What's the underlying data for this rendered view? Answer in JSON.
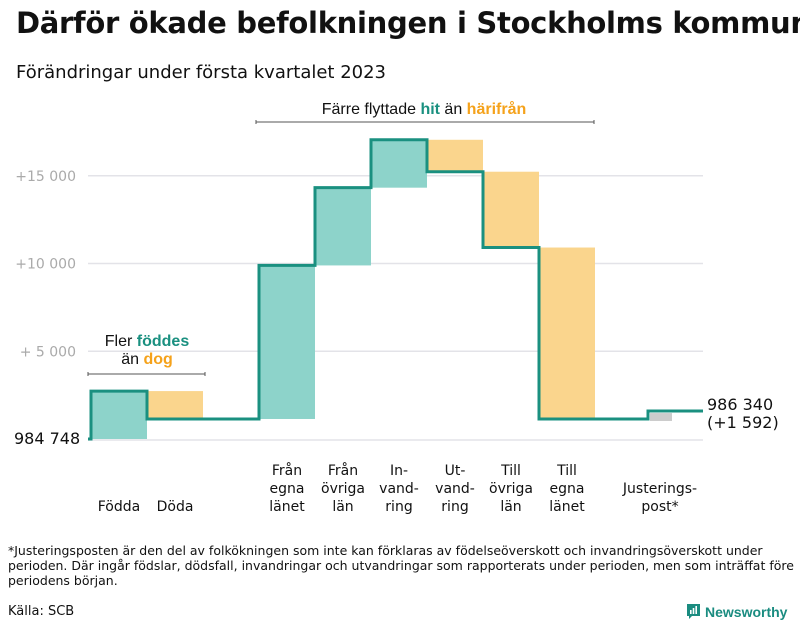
{
  "title": "Därför ökade befolkningen i Stockholms kommun",
  "subtitle": "Förändringar under första kvartalet 2023",
  "footnote": "*Justeringsposten är den del av folkökningen som inte kan förklaras av födelseöverskott och invandringsöverskott under perioden. Där ingår födslar, dödsfall, invandringar och utvandringar som rapporterats under perioden, men som inträffat före periodens början.",
  "source": "Källa: SCB",
  "brand": "Newsworthy",
  "colors": {
    "increase": "#8dd3ca",
    "decrease": "#fad58d",
    "adjust": "#cccccc",
    "line": "#1a9080",
    "hit": "#1a9080",
    "harifran": "#f5a21b",
    "grid": "#e3e3e8",
    "tick": "#aaaaaa"
  },
  "chart_data": {
    "type": "waterfall",
    "title": "Därför ökade befolkningen i Stockholms kommun",
    "start_label": "984 748",
    "start_value": 984748,
    "end_label_1": "986 340",
    "end_label_2": "(+1 592)",
    "end_value": 986340,
    "ylim": [
      0,
      17500
    ],
    "yticks": [
      {
        "value": 5000,
        "label": "+ 5 000"
      },
      {
        "value": 10000,
        "label": "+10 000"
      },
      {
        "value": 15000,
        "label": "+15 000"
      }
    ],
    "categories": [
      {
        "lines": [
          "",
          "",
          "Födda"
        ],
        "change": 2730,
        "kind": "increase"
      },
      {
        "lines": [
          "",
          "",
          "Döda"
        ],
        "change": -1590,
        "kind": "decrease"
      },
      {
        "lines": [
          "Från",
          "egna",
          "länet"
        ],
        "change": 8750,
        "kind": "increase"
      },
      {
        "lines": [
          "Från",
          "övriga",
          "län"
        ],
        "change": 4430,
        "kind": "increase"
      },
      {
        "lines": [
          "In-",
          "vand-",
          "ring"
        ],
        "change": 2730,
        "kind": "increase"
      },
      {
        "lines": [
          "Ut-",
          "vand-",
          "ring"
        ],
        "change": -1820,
        "kind": "decrease"
      },
      {
        "lines": [
          "Till",
          "övriga",
          "län"
        ],
        "change": -4320,
        "kind": "decrease"
      },
      {
        "lines": [
          "Till",
          "egna",
          "länet"
        ],
        "change": -9770,
        "kind": "decrease"
      },
      {
        "lines": [
          "",
          "Justerings-",
          "post*"
        ],
        "change": 452,
        "kind": "adjust"
      }
    ],
    "annotations": {
      "births": {
        "prefix": "Fler ",
        "hl1": "föddes",
        "mid": "än ",
        "hl2": "dog"
      },
      "moves": {
        "prefix": "Färre flyttade ",
        "hl1": "hit",
        "mid": " än ",
        "hl2": "härifrån"
      }
    }
  }
}
